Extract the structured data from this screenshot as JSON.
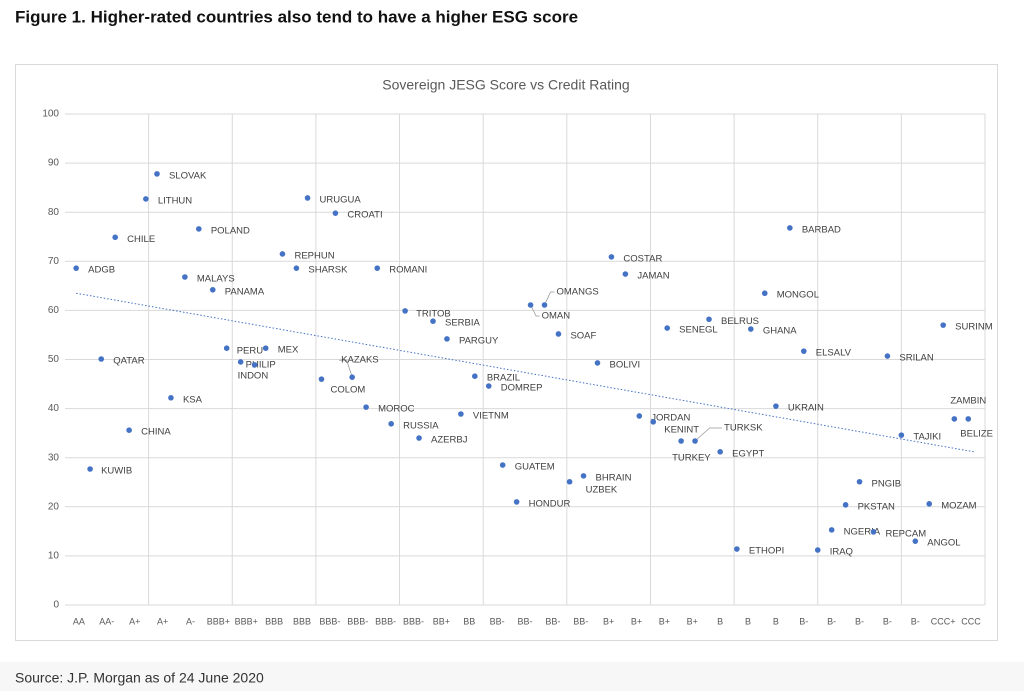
{
  "heading": "Figure 1. Higher-rated countries also tend to have a higher ESG score",
  "source": "Source: J.P. Morgan as of 24 June 2020",
  "chart_data": {
    "type": "scatter",
    "title": "Sovereign JESG Score vs Credit Rating",
    "color": "#4472c4",
    "grid": true,
    "ylim": [
      0,
      100
    ],
    "yticks": [
      0,
      10,
      20,
      30,
      40,
      50,
      60,
      70,
      80,
      90,
      100
    ],
    "xlim": [
      0,
      33
    ],
    "xticks": [
      {
        "value": 0.5,
        "label": "AA"
      },
      {
        "value": 1.5,
        "label": "AA-"
      },
      {
        "value": 2.5,
        "label": "A+"
      },
      {
        "value": 3.5,
        "label": "A+"
      },
      {
        "value": 4.5,
        "label": "A-"
      },
      {
        "value": 5.5,
        "label": "BBB+"
      },
      {
        "value": 6.5,
        "label": "BBB+"
      },
      {
        "value": 7.5,
        "label": "BBB"
      },
      {
        "value": 8.5,
        "label": "BBB"
      },
      {
        "value": 9.5,
        "label": "BBB-"
      },
      {
        "value": 10.5,
        "label": "BBB-"
      },
      {
        "value": 11.5,
        "label": "BBB-"
      },
      {
        "value": 12.5,
        "label": "BBB-"
      },
      {
        "value": 13.5,
        "label": "BB+"
      },
      {
        "value": 14.5,
        "label": "BB"
      },
      {
        "value": 15.5,
        "label": "BB-"
      },
      {
        "value": 16.5,
        "label": "BB-"
      },
      {
        "value": 17.5,
        "label": "BB-"
      },
      {
        "value": 18.5,
        "label": "BB-"
      },
      {
        "value": 19.5,
        "label": "B+"
      },
      {
        "value": 20.5,
        "label": "B+"
      },
      {
        "value": 21.5,
        "label": "B+"
      },
      {
        "value": 22.5,
        "label": "B+"
      },
      {
        "value": 23.5,
        "label": "B"
      },
      {
        "value": 24.5,
        "label": "B"
      },
      {
        "value": 25.5,
        "label": "B"
      },
      {
        "value": 26.5,
        "label": "B-"
      },
      {
        "value": 27.5,
        "label": "B-"
      },
      {
        "value": 28.5,
        "label": "B-"
      },
      {
        "value": 29.5,
        "label": "B-"
      },
      {
        "value": 30.5,
        "label": "B-"
      },
      {
        "value": 31.5,
        "label": "CCC+"
      },
      {
        "value": 32.5,
        "label": "CCC"
      }
    ],
    "xgrid": [
      3,
      6,
      9,
      12,
      15,
      18,
      21,
      24,
      27,
      30,
      33
    ],
    "points": {
      "labels": [
        "ADGB",
        "QATAR",
        "KUWIB",
        "CHILE",
        "LITHUN",
        "CHINA",
        "SLOVAK",
        "KSA",
        "POLAND",
        "MALAYS",
        "PANAMA",
        "PERU",
        "PHILIP",
        "INDON",
        "MEX",
        "REPHUN",
        "SHARSK",
        "URUGUA",
        "CROATI",
        "COLOM",
        "KAZAKS",
        "ROMANI",
        "MOROC",
        "RUSSIA",
        "TRITOB",
        "AZERBJ",
        "SERBIA",
        "PARGUY",
        "VIETNM",
        "BRAZIL",
        "DOMREP",
        "GUATEM",
        "HONDUR",
        "OMAN",
        "OMANGS",
        "SOAF",
        "UZBEK",
        "BHRAIN",
        "BOLIVI",
        "COSTAR",
        "JAMAN",
        "JORDAN",
        "KENINT",
        "TURKEY",
        "TURKSK",
        "SENEGL",
        "EGYPT",
        "BELRUS",
        "ETHOPI",
        "GHANA",
        "MONGOL",
        "BARBAD",
        "UKRAIN",
        "ELSALV",
        "IRAQ",
        "NGERIA",
        "PKSTAN",
        "PNGIB",
        "REPCAM",
        "SRILAN",
        "TAJIKI",
        "ANGOL",
        "MOZAM",
        "SURINM",
        "ZAMBIN",
        "BELIZE"
      ],
      "x": [
        0.4,
        1.3,
        0.9,
        1.8,
        2.9,
        2.3,
        3.3,
        3.8,
        4.8,
        4.3,
        5.3,
        5.8,
        6.3,
        6.8,
        7.2,
        7.8,
        8.3,
        8.7,
        9.7,
        9.2,
        10.3,
        11.2,
        10.8,
        11.7,
        12.2,
        12.7,
        13.2,
        13.7,
        14.2,
        14.7,
        15.2,
        15.7,
        16.2,
        16.7,
        17.2,
        17.7,
        18.1,
        18.6,
        19.1,
        19.6,
        20.1,
        20.6,
        21.1,
        22.1,
        22.6,
        21.6,
        23.5,
        23.1,
        24.1,
        24.6,
        25.1,
        26.0,
        25.5,
        26.5,
        27.0,
        27.5,
        28.0,
        28.5,
        29.0,
        29.5,
        30.0,
        30.5,
        31.0,
        31.5,
        31.9,
        32.4
      ],
      "values": [
        68.6,
        50.1,
        27.7,
        74.9,
        82.7,
        35.6,
        87.8,
        42.2,
        76.6,
        66.8,
        64.2,
        52.3,
        49.5,
        48.9,
        52.3,
        71.5,
        68.6,
        82.9,
        79.8,
        46.0,
        46.4,
        68.6,
        40.3,
        36.9,
        59.9,
        34.0,
        57.8,
        54.2,
        38.9,
        46.6,
        44.6,
        28.5,
        21.0,
        61.1,
        61.1,
        55.2,
        25.1,
        26.3,
        49.3,
        70.9,
        67.4,
        38.5,
        37.3,
        33.4,
        33.4,
        56.4,
        31.2,
        58.2,
        11.4,
        56.2,
        63.5,
        76.8,
        40.5,
        51.7,
        11.2,
        15.3,
        20.4,
        25.1,
        14.9,
        50.7,
        34.6,
        13.0,
        20.6,
        57.0,
        37.9,
        37.9
      ]
    },
    "trendline": {
      "x": [
        0.4,
        32.6
      ],
      "values": [
        63.5,
        31.2
      ]
    }
  }
}
